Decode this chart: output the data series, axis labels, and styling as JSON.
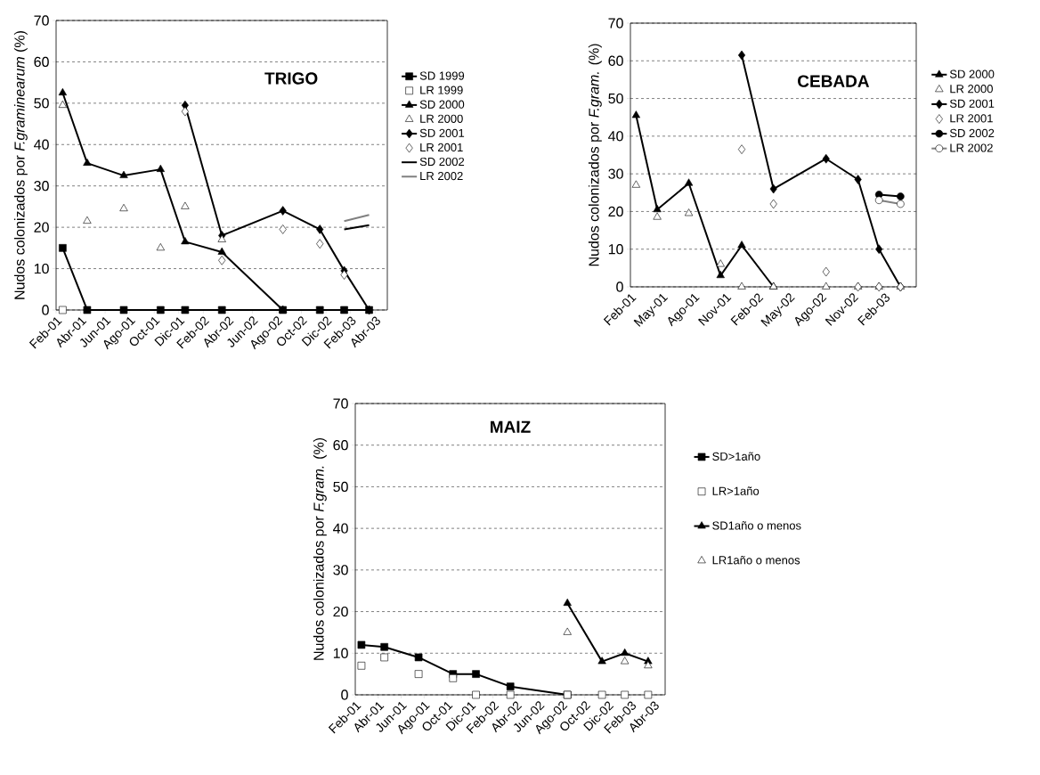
{
  "chart_data": [
    {
      "type": "line",
      "title": "TRIGO",
      "ylabel": "Nudos colonizados por *F.graminearum* (%)",
      "x": [
        "2001-02-16",
        "2001-04-17",
        "2001-07-17",
        "2001-10-17",
        "2001-12-17",
        "2002-03-17",
        "2002-08-16",
        "2002-11-16",
        "2003-01-16",
        "2003-03-17"
      ],
      "xlim": [
        "2001-02",
        "2003-05"
      ],
      "xticks": [
        {
          "value": "2001-02",
          "label": "Feb-01"
        },
        {
          "value": "2001-04",
          "label": "Abr-01"
        },
        {
          "value": "2001-06",
          "label": "Jun-01"
        },
        {
          "value": "2001-08",
          "label": "Ago-01"
        },
        {
          "value": "2001-10",
          "label": "Oct-01"
        },
        {
          "value": "2001-12",
          "label": "Dic-01"
        },
        {
          "value": "2002-02",
          "label": "Feb-02"
        },
        {
          "value": "2002-04",
          "label": "Abr-02"
        },
        {
          "value": "2002-06",
          "label": "Jun-02"
        },
        {
          "value": "2002-08",
          "label": "Ago-02"
        },
        {
          "value": "2002-10",
          "label": "Oct-02"
        },
        {
          "value": "2002-12",
          "label": "Dic-02"
        },
        {
          "value": "2003-02",
          "label": "Feb-03"
        },
        {
          "value": "2003-04",
          "label": "Abr-03"
        }
      ],
      "ylim": [
        0,
        70
      ],
      "yticks": [
        0,
        10,
        20,
        30,
        40,
        50,
        60,
        70
      ],
      "grid": "y",
      "legend": "right",
      "series": [
        {
          "name": "SD 1999",
          "marker": "square",
          "color": "#000000",
          "values": [
            15,
            0,
            0,
            0,
            0,
            0,
            0,
            0,
            0,
            0
          ]
        },
        {
          "name": "LR 1999",
          "type": "scatter",
          "marker": "square",
          "color": "#000000",
          "values": [
            0,
            null,
            null,
            null,
            null,
            null,
            null,
            null,
            null,
            null
          ]
        },
        {
          "name": "SD 2000",
          "type": "line",
          "marker": "triangle",
          "color": "#000000",
          "values": [
            52.5,
            35.5,
            32.5,
            34,
            16.5,
            14,
            0,
            null,
            null,
            null
          ]
        },
        {
          "name": "LR 2000",
          "type": "scatter",
          "marker": "triangle",
          "color": "#000000",
          "values": [
            49.5,
            21.5,
            24.5,
            15,
            25,
            17,
            null,
            null,
            null,
            null
          ]
        },
        {
          "name": "SD 2001",
          "type": "line",
          "marker": "diamond",
          "color": "#000000",
          "values": [
            null,
            null,
            null,
            null,
            49.5,
            18,
            24,
            19.5,
            9.5,
            0
          ]
        },
        {
          "name": "LR 2001",
          "type": "scatter",
          "marker": "diamond",
          "color": "#000000",
          "values": [
            null,
            null,
            null,
            null,
            48,
            12,
            19.5,
            16,
            8.5,
            null
          ]
        },
        {
          "name": "SD 2002",
          "marker": "none",
          "color": "#000000",
          "values": [
            null,
            null,
            null,
            null,
            null,
            null,
            null,
            null,
            19.5,
            20.5
          ]
        },
        {
          "name": "LR 2002",
          "marker": "none",
          "color": "#808080",
          "values": [
            null,
            null,
            null,
            null,
            null,
            null,
            null,
            null,
            21.5,
            23
          ]
        }
      ]
    },
    {
      "type": "line",
      "title": "CEBADA",
      "ylabel": "Nudos colonizados  por *F.gram.*  (%)",
      "x": [
        "2001-02-16",
        "2001-04-17",
        "2001-07-17",
        "2001-10-17",
        "2001-12-17",
        "2002-03-17",
        "2002-08-16",
        "2002-11-16",
        "2003-01-16",
        "2003-03-17"
      ],
      "xlim": [
        "2001-02",
        "2003-05"
      ],
      "xticks": [
        {
          "value": "2001-02",
          "label": "Feb-01"
        },
        {
          "value": "2001-05",
          "label": "May-01"
        },
        {
          "value": "2001-08",
          "label": "Ago-01"
        },
        {
          "value": "2001-11",
          "label": "Nov-01"
        },
        {
          "value": "2002-02",
          "label": "Feb-02"
        },
        {
          "value": "2002-05",
          "label": "May-02"
        },
        {
          "value": "2002-08",
          "label": "Ago-02"
        },
        {
          "value": "2002-11",
          "label": "Nov-02"
        },
        {
          "value": "2003-02",
          "label": "Feb-03"
        }
      ],
      "ylim": [
        0,
        70
      ],
      "yticks": [
        0,
        10,
        20,
        30,
        40,
        50,
        60,
        70
      ],
      "grid": "y",
      "legend": "right",
      "series": [
        {
          "name": "SD 2000",
          "type": "line",
          "marker": "triangle",
          "color": "#000000",
          "values": [
            45.5,
            20.5,
            27.5,
            3,
            11,
            0,
            null,
            null,
            null,
            null
          ]
        },
        {
          "name": "LR 2000",
          "type": "scatter",
          "marker": "triangle",
          "color": "#000000",
          "values": [
            27,
            18.5,
            19.5,
            6,
            0,
            0,
            0,
            0,
            0,
            0
          ]
        },
        {
          "name": "SD 2001",
          "type": "line",
          "marker": "diamond",
          "color": "#000000",
          "values": [
            null,
            null,
            null,
            null,
            61.5,
            26,
            34,
            28.5,
            10,
            0
          ]
        },
        {
          "name": "LR 2001",
          "type": "scatter",
          "marker": "diamond",
          "color": "#000000",
          "values": [
            null,
            null,
            null,
            null,
            36.5,
            22,
            4,
            0,
            0,
            0
          ]
        },
        {
          "name": "SD 2002",
          "marker": "circle",
          "color": "#000000",
          "values": [
            null,
            null,
            null,
            null,
            null,
            null,
            null,
            null,
            24.5,
            24
          ]
        },
        {
          "name": "LR 2002",
          "marker": "circle",
          "color": "#808080",
          "values": [
            null,
            null,
            null,
            null,
            null,
            null,
            null,
            null,
            23,
            22
          ]
        }
      ]
    },
    {
      "type": "line",
      "title": "MAIZ",
      "ylabel": "Nudos colonizados por *F.gram.* (%)",
      "x": [
        "2001-02-16",
        "2001-04-17",
        "2001-07-17",
        "2001-10-17",
        "2001-12-17",
        "2002-03-17",
        "2002-08-16",
        "2002-11-16",
        "2003-01-16",
        "2003-03-17"
      ],
      "xlim": [
        "2001-02",
        "2003-05"
      ],
      "xticks": [
        {
          "value": "2001-02",
          "label": "Feb-01"
        },
        {
          "value": "2001-04",
          "label": "Abr-01"
        },
        {
          "value": "2001-06",
          "label": "Jun-01"
        },
        {
          "value": "2001-08",
          "label": "Ago-01"
        },
        {
          "value": "2001-10",
          "label": "Oct-01"
        },
        {
          "value": "2001-12",
          "label": "Dic-01"
        },
        {
          "value": "2002-02",
          "label": "Feb-02"
        },
        {
          "value": "2002-04",
          "label": "Abr-02"
        },
        {
          "value": "2002-06",
          "label": "Jun-02"
        },
        {
          "value": "2002-08",
          "label": "Ago-02"
        },
        {
          "value": "2002-10",
          "label": "Oct-02"
        },
        {
          "value": "2002-12",
          "label": "Dic-02"
        },
        {
          "value": "2003-02",
          "label": "Feb-03"
        },
        {
          "value": "2003-04",
          "label": "Abr-03"
        }
      ],
      "ylim": [
        0,
        70
      ],
      "yticks": [
        0,
        10,
        20,
        30,
        40,
        50,
        60,
        70
      ],
      "grid": "y",
      "legend": "right",
      "series": [
        {
          "name": "SD>1año",
          "marker": "square",
          "color": "#000000",
          "values": [
            12,
            11.5,
            9,
            5,
            5,
            2,
            0,
            null,
            null,
            null
          ]
        },
        {
          "name": "LR>1año",
          "type": "scatter",
          "marker": "square",
          "color": "#000000",
          "values": [
            7,
            9,
            5,
            4,
            0,
            0,
            0,
            0,
            0,
            0
          ]
        },
        {
          "name": "SD1año o menos",
          "marker": "triangle",
          "color": "#000000",
          "values": [
            null,
            null,
            null,
            null,
            null,
            null,
            22,
            8,
            10,
            8
          ]
        },
        {
          "name": "LR1año o menos",
          "type": "scatter",
          "marker": "triangle",
          "color": "#000000",
          "values": [
            null,
            null,
            null,
            null,
            null,
            null,
            15,
            null,
            8,
            7
          ]
        }
      ]
    }
  ]
}
